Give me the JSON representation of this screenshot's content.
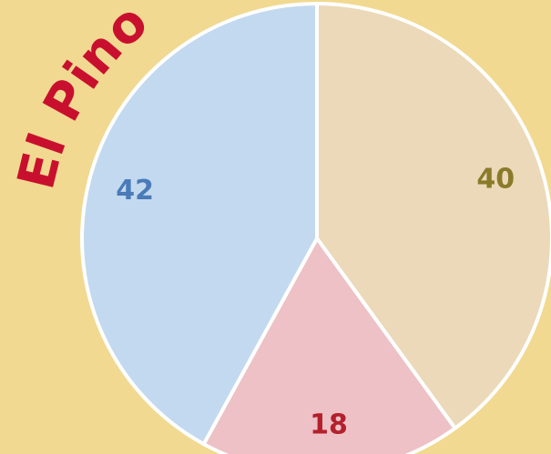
{
  "chart_data": {
    "type": "pie",
    "title": "El Pino",
    "values": [
      40,
      18,
      42
    ],
    "colors": [
      "#ebd9b9",
      "#edc1c5",
      "#c3d9ef"
    ],
    "label_colors": [
      "#8a7a2a",
      "#b3202c",
      "#4a7bb8"
    ],
    "title_color": "#c8102e"
  }
}
